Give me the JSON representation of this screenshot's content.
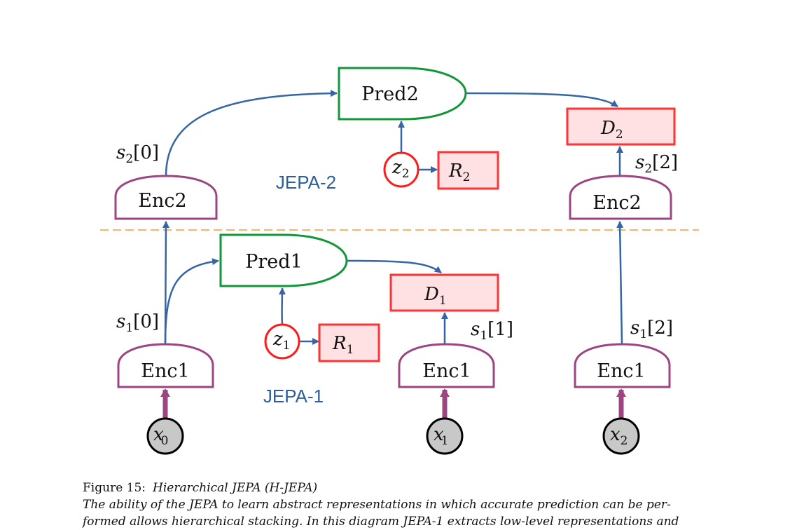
{
  "diagram": {
    "nodes": {
      "pred2": "Pred2",
      "pred1": "Pred1",
      "enc2_left": "Enc2",
      "enc2_right": "Enc2",
      "enc1_a": "Enc1",
      "enc1_b": "Enc1",
      "enc1_c": "Enc1",
      "d2": "D",
      "d2_sub": "2",
      "d1": "D",
      "d1_sub": "1",
      "r2": "R",
      "r2_sub": "2",
      "r1": "R",
      "r1_sub": "1",
      "z2": "z",
      "z2_sub": "2",
      "z1": "z",
      "z1_sub": "1",
      "x0": "x",
      "x0_sub": "0",
      "x1": "x",
      "x1_sub": "1",
      "x2": "x",
      "x2_sub": "2"
    },
    "labels": {
      "s2_0": "s",
      "s2_0_sub": "2",
      "s2_0_idx": "[0]",
      "s2_2": "s",
      "s2_2_sub": "2",
      "s2_2_idx": "[2]",
      "s1_0": "s",
      "s1_0_sub": "1",
      "s1_0_idx": "[0]",
      "s1_1": "s",
      "s1_1_sub": "1",
      "s1_1_idx": "[1]",
      "s1_2": "s",
      "s1_2_sub": "1",
      "s1_2_idx": "[2]",
      "jepa2": "JEPA-2",
      "jepa1": "JEPA-1"
    },
    "colors": {
      "predictor": "#12963a",
      "encoder": "#9c4580",
      "cost": "#ff3333",
      "cost_fill": "#ffe0e3",
      "arrow": "#3465a4",
      "divider": "#ff9a33",
      "input_fill": "#c8c8c8"
    }
  },
  "caption": {
    "figure": "Figure 15:",
    "title": "Hierarchical JEPA (H-JEPA)",
    "line1": "The ability of the JEPA to learn abstract representations in which accurate prediction can be per-",
    "line2": "formed allows hierarchical stacking. In this diagram JEPA-1 extracts low-level representations and"
  }
}
